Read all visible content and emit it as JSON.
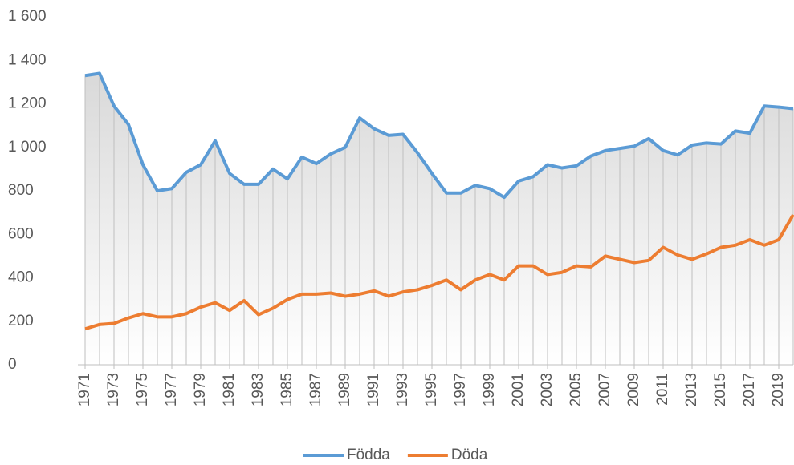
{
  "chart_data": {
    "type": "line",
    "x": [
      1971,
      1972,
      1973,
      1974,
      1975,
      1976,
      1977,
      1978,
      1979,
      1980,
      1981,
      1982,
      1983,
      1984,
      1985,
      1986,
      1987,
      1988,
      1989,
      1990,
      1991,
      1992,
      1993,
      1994,
      1995,
      1996,
      1997,
      1998,
      1999,
      2000,
      2001,
      2002,
      2003,
      2004,
      2005,
      2006,
      2007,
      2008,
      2009,
      2010,
      2011,
      2012,
      2013,
      2014,
      2015,
      2016,
      2017,
      2018,
      2019,
      2020
    ],
    "series": [
      {
        "name": "Födda",
        "color": "#5b9bd5",
        "values": [
          1330,
          1340,
          1190,
          1105,
          920,
          800,
          810,
          885,
          920,
          1030,
          880,
          830,
          830,
          900,
          855,
          955,
          925,
          970,
          1000,
          1135,
          1085,
          1055,
          1060,
          975,
          880,
          790,
          790,
          825,
          810,
          770,
          845,
          865,
          920,
          905,
          915,
          960,
          985,
          995,
          1005,
          1040,
          985,
          965,
          1010,
          1020,
          1015,
          1075,
          1065,
          1190,
          1185,
          1178
        ]
      },
      {
        "name": "Döda",
        "color": "#ed7d31",
        "values": [
          165,
          185,
          190,
          215,
          235,
          220,
          220,
          235,
          265,
          285,
          250,
          295,
          230,
          260,
          300,
          325,
          325,
          330,
          315,
          325,
          340,
          315,
          335,
          345,
          365,
          390,
          345,
          390,
          415,
          390,
          455,
          455,
          415,
          425,
          455,
          450,
          500,
          485,
          470,
          480,
          540,
          505,
          485,
          510,
          540,
          550,
          575,
          550,
          575,
          690
        ]
      }
    ],
    "xlim": [
      1970.5,
      2020
    ],
    "xticks": [
      1971,
      1973,
      1975,
      1977,
      1979,
      1981,
      1983,
      1985,
      1987,
      1989,
      1991,
      1993,
      1995,
      1997,
      1999,
      2001,
      2003,
      2005,
      2007,
      2009,
      2011,
      2013,
      2015,
      2017,
      2019
    ],
    "ylim": [
      0,
      1600
    ],
    "yticks": [
      0,
      200,
      400,
      600,
      800,
      {
        "value": 1000,
        "label": "1 000"
      },
      {
        "value": 1200,
        "label": "1 200"
      },
      {
        "value": 1400,
        "label": "1 400"
      },
      {
        "value": 1600,
        "label": "1 600"
      }
    ],
    "grid": false,
    "legend": "bottom"
  }
}
